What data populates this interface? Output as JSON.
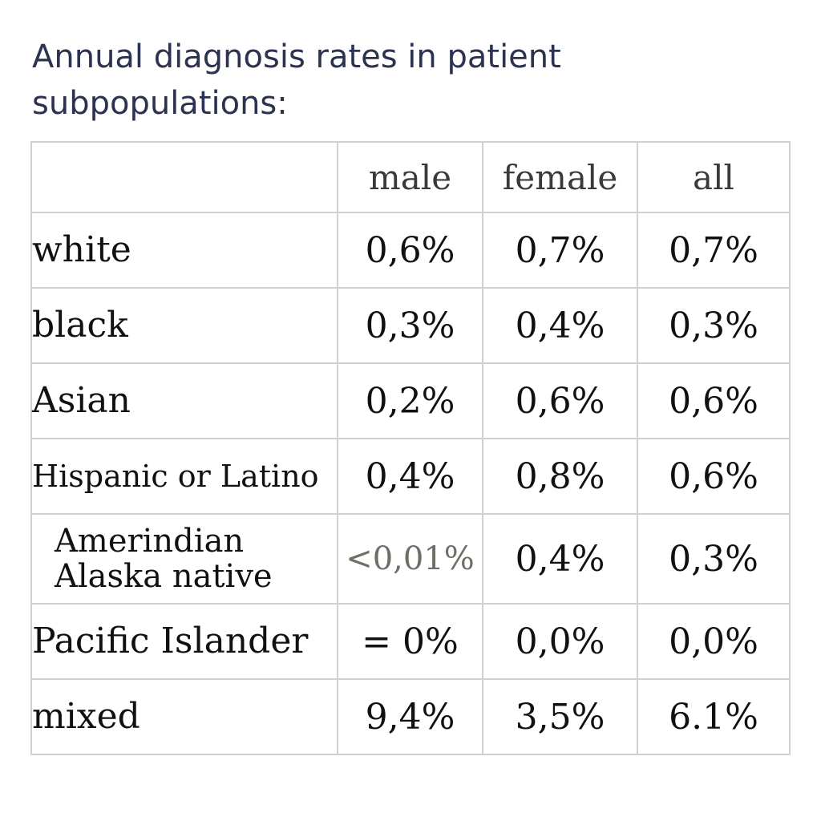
{
  "title": "Annual diagnosis rates in patient subpopulations:",
  "table": {
    "columns": [
      "",
      "male",
      "female",
      "all"
    ],
    "rows": [
      {
        "label": "white",
        "male": "0,6%",
        "female": "0,7%",
        "all": "0,7%"
      },
      {
        "label": "black",
        "male": "0,3%",
        "female": "0,4%",
        "all": "0,3%"
      },
      {
        "label": "Asian",
        "male": "0,2%",
        "female": "0,6%",
        "all": "0,6%"
      },
      {
        "label": "Hispanic or Latino",
        "male": "0,4%",
        "female": "0,8%",
        "all": "0,6%"
      },
      {
        "label": "Amerindian Alaska native",
        "male": "<0,01%",
        "female": "0,4%",
        "all": "0,3%"
      },
      {
        "label": "Pacific Islander",
        "male": "= 0%",
        "female": "0,0%",
        "all": "0,0%"
      },
      {
        "label": "mixed",
        "male": "9,4%",
        "female": "3,5%",
        "all": "6.1%"
      }
    ]
  },
  "chart_data": {
    "type": "table",
    "title": "Annual diagnosis rates in patient subpopulations:",
    "columns": [
      "male",
      "female",
      "all"
    ],
    "row_labels": [
      "white",
      "black",
      "Asian",
      "Hispanic or Latino",
      "Amerindian Alaska native",
      "Pacific Islander",
      "mixed"
    ]
  }
}
